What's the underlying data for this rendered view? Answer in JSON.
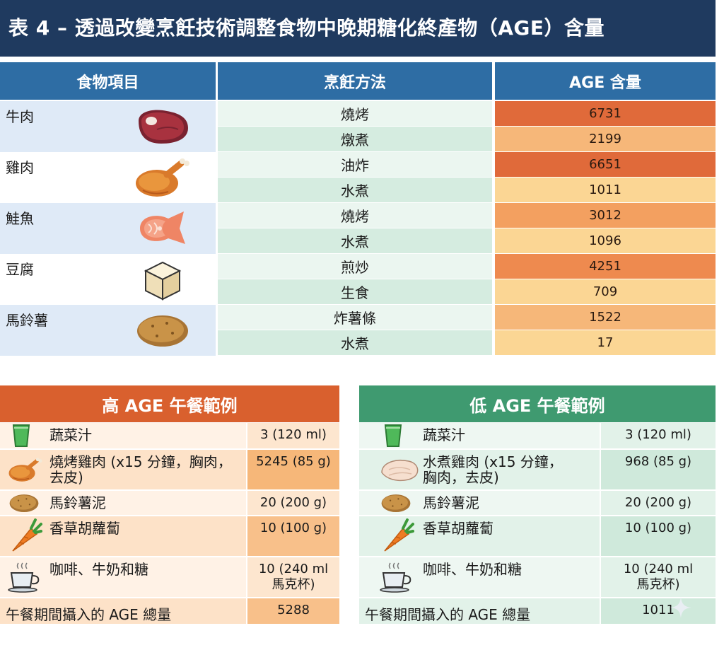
{
  "title": "表 4 – 透過改變烹飪技術調整食物中晚期糖化終產物（AGE）含量",
  "table": {
    "headers": {
      "food": "食物項目",
      "method": "烹飪方法",
      "age": "AGE 含量"
    },
    "foods": [
      {
        "name": "牛肉",
        "icon": "steak-icon",
        "rows": [
          {
            "method": "燒烤",
            "age": "6731"
          },
          {
            "method": "燉煮",
            "age": "2199"
          }
        ]
      },
      {
        "name": "雞肉",
        "icon": "roast-chicken-icon",
        "rows": [
          {
            "method": "油炸",
            "age": "6651"
          },
          {
            "method": "水煮",
            "age": "1011"
          }
        ]
      },
      {
        "name": "鮭魚",
        "icon": "salmon-steak-icon",
        "rows": [
          {
            "method": "燒烤",
            "age": "3012"
          },
          {
            "method": "水煮",
            "age": "1096"
          }
        ]
      },
      {
        "name": "豆腐",
        "icon": "tofu-cube-icon",
        "rows": [
          {
            "method": "煎炒",
            "age": "4251"
          },
          {
            "method": "生食",
            "age": "709"
          }
        ]
      },
      {
        "name": "馬鈴薯",
        "icon": "potato-icon",
        "rows": [
          {
            "method": "炸薯條",
            "age": "1522"
          },
          {
            "method": "水煮",
            "age": "17"
          }
        ]
      }
    ]
  },
  "high_lunch": {
    "title": "高 AGE 午餐範例",
    "items": [
      {
        "label": "蔬菜汁",
        "value": "3 (120 ml)",
        "icon": "juice-glass-icon"
      },
      {
        "label": "燒烤雞肉 (x15 分鐘，胸肉，",
        "label2": "去皮)",
        "value": "5245 (85 g)",
        "icon": "roast-chicken-icon"
      },
      {
        "label": "馬鈴薯泥",
        "value": "20 (200 g)",
        "icon": "potato-icon"
      },
      {
        "label": "香草胡蘿蔔",
        "value": "10 (100 g)",
        "icon": "carrot-icon"
      },
      {
        "label": "咖啡、牛奶和糖",
        "value": "10 (240 ml",
        "value2": "馬克杯)",
        "icon": "coffee-cup-icon"
      }
    ],
    "total_label": "午餐期間攝入的 AGE 總量",
    "total_value": "5288"
  },
  "low_lunch": {
    "title": "低 AGE 午餐範例",
    "items": [
      {
        "label": "蔬菜汁",
        "value": "3 (120 ml)",
        "icon": "juice-glass-icon"
      },
      {
        "label": "水煮雞肉 (x15 分鐘，",
        "label2": "胸肉，去皮)",
        "value": "968 (85 g)",
        "icon": "poached-chicken-breast-icon"
      },
      {
        "label": "馬鈴薯泥",
        "value": "20 (200 g)",
        "icon": "potato-icon"
      },
      {
        "label": "香草胡蘿蔔",
        "value": "10 (100 g)",
        "icon": "carrot-icon"
      },
      {
        "label": "咖啡、牛奶和糖",
        "value": "10 (240 ml",
        "value2": "馬克杯)",
        "icon": "coffee-cup-icon"
      }
    ],
    "total_label": "午餐期間攝入的 AGE 總量",
    "total_value": "1011"
  },
  "colors": {
    "title_bg": "#1f3a5f",
    "header_blue": "#2e6da4",
    "high_header": "#d9602e",
    "low_header": "#3f9a70",
    "age_scale": [
      "#fbd694",
      "#f6b779",
      "#f3a060",
      "#ee8a4f",
      "#e06a3a"
    ]
  }
}
